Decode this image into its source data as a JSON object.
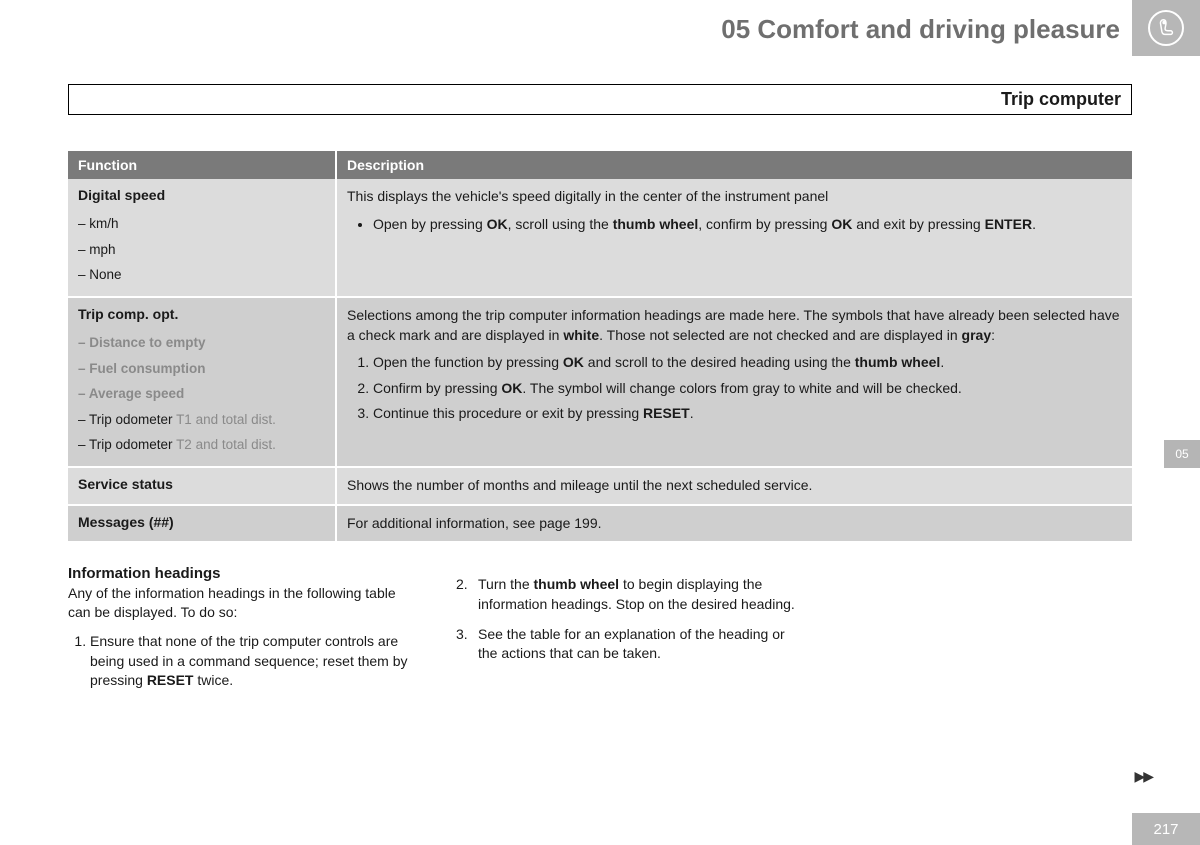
{
  "chapter": {
    "title": "05 Comfort and driving pleasure",
    "tab": "05"
  },
  "section_title": "Trip computer",
  "page_number": "217",
  "colors": {
    "header_bg": "#b7b7b7",
    "table_header_bg": "#7a7a7a",
    "row_light": "#dcdcdc",
    "row_dark": "#cfcfcf",
    "muted_text": "#8a8a8a"
  },
  "table": {
    "headers": {
      "col1": "Function",
      "col2": "Description"
    },
    "rows": [
      {
        "fn": "Digital speed",
        "subs_plain": [
          "– km/h",
          "– mph",
          "– None"
        ],
        "desc_intro": "This displays the vehicle's speed digitally in the center of the instrument panel",
        "bullet_html": "Open by pressing <b>OK</b>, scroll using the <b>thumb wheel</b>, confirm by pressing <b>OK</b> and exit by pressing <b>ENTER</b>."
      },
      {
        "fn": "Trip comp. opt.",
        "subs_muted": [
          "– Distance to empty",
          "– Fuel consumption",
          "– Average speed"
        ],
        "subs_mixed": [
          {
            "plain": "– Trip odometer ",
            "muted": "T1 and total dist."
          },
          {
            "plain": "– Trip odometer ",
            "muted": "T2 and total dist."
          }
        ],
        "desc_intro_html": "Selections among the trip computer information headings are made here. The symbols that have already been selected have a check mark and are displayed in <b>white</b>. Those not selected are not checked and are displayed in <b>gray</b>:",
        "steps_html": [
          "Open the function by pressing <b>OK</b> and scroll to the desired heading using the <b>thumb wheel</b>.",
          "Confirm by pressing <b>OK</b>. The symbol will change colors from gray to white and will be checked.",
          "Continue this procedure or exit by pressing <b>RESET</b>."
        ]
      },
      {
        "fn": "Service status",
        "desc_plain": "Shows the number of months and mileage until the next scheduled service."
      },
      {
        "fn": "Messages (##)",
        "desc_plain": "For additional information, see page 199."
      }
    ]
  },
  "info_headings": {
    "title": "Information headings",
    "intro": "Any of the information headings in the following table can be displayed. To do so:",
    "col1_steps_html": [
      "Ensure that none of the trip computer controls are being used in a command sequence; reset them by pressing <b>RESET</b> twice."
    ],
    "col2_steps_html": [
      "Turn the <b>thumb wheel</b> to begin displaying the information headings. Stop on the desired heading.",
      "See the table for an explanation of the heading or the actions that can be taken."
    ]
  }
}
